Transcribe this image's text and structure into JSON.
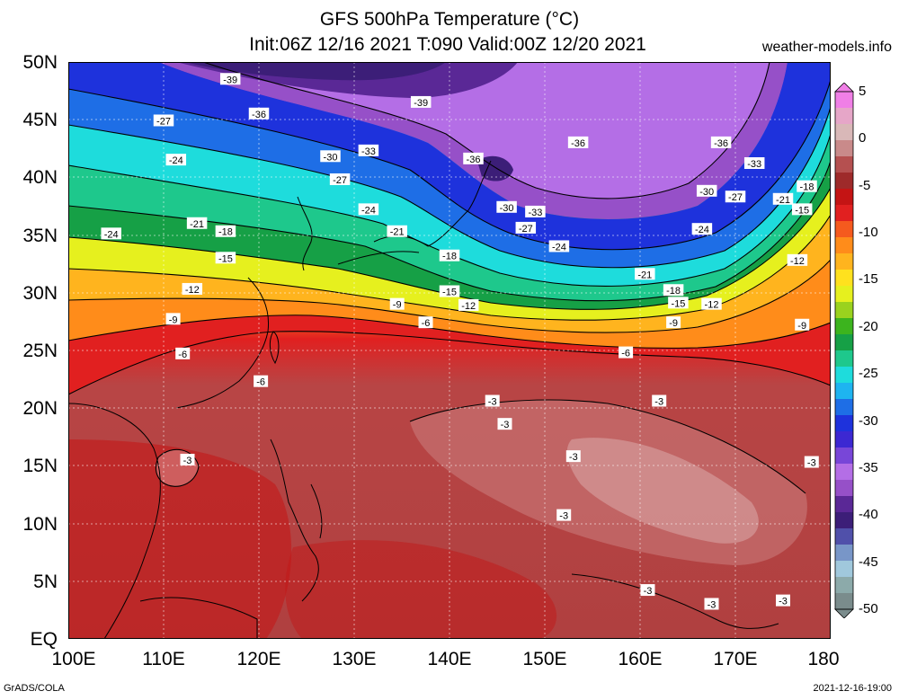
{
  "title": {
    "line1": "GFS 500hPa Temperature (°C)",
    "line2": "Init:06Z 12/16 2021 T:090 Valid:00Z 12/20 2021",
    "site": "weather-models.info"
  },
  "axes": {
    "lat_labels": [
      "50N",
      "45N",
      "40N",
      "35N",
      "30N",
      "25N",
      "20N",
      "15N",
      "10N",
      "5N",
      "EQ"
    ],
    "lat_values": [
      50,
      45,
      40,
      35,
      30,
      25,
      20,
      15,
      10,
      5,
      0
    ],
    "lon_labels": [
      "100E",
      "110E",
      "120E",
      "130E",
      "140E",
      "150E",
      "160E",
      "170E",
      "180"
    ],
    "lon_values": [
      100,
      110,
      120,
      130,
      140,
      150,
      160,
      170,
      180
    ],
    "lon_range": [
      100,
      180
    ],
    "lat_range": [
      0,
      50
    ]
  },
  "colorbar": {
    "labels": [
      "5",
      "0",
      "-5",
      "-10",
      "-15",
      "-20",
      "-25",
      "-30",
      "-35",
      "-40",
      "-45",
      "-50"
    ],
    "values": [
      5,
      0,
      -5,
      -10,
      -15,
      -20,
      -25,
      -30,
      -35,
      -40,
      -45,
      -50
    ],
    "colors": [
      "#f07fe6",
      "#e6a6c8",
      "#d9b8b8",
      "#c98a8a",
      "#b55050",
      "#9e2a2a",
      "#c41414",
      "#e12020",
      "#f55a1e",
      "#ff8c1a",
      "#ffb41e",
      "#ffe11e",
      "#e6f01e",
      "#9ad21e",
      "#3cb41e",
      "#16a046",
      "#1ec88c",
      "#1edcdc",
      "#1eb4f0",
      "#1e6ee6",
      "#1e32dc",
      "#3c28d2",
      "#7846d8",
      "#b46ee6",
      "#9650c8",
      "#5a2896",
      "#3c1e78",
      "#5050aa",
      "#7896c8",
      "#a0c8dc",
      "#8caaaa",
      "#7a8c8c"
    ]
  },
  "contour_labels": [
    {
      "text": "-39",
      "lon": 117.0,
      "lat": 48.5
    },
    {
      "text": "-39",
      "lon": 137.0,
      "lat": 46.5
    },
    {
      "text": "-36",
      "lon": 120.0,
      "lat": 45.5
    },
    {
      "text": "-27",
      "lon": 110.0,
      "lat": 44.9
    },
    {
      "text": "-30",
      "lon": 127.5,
      "lat": 41.8
    },
    {
      "text": "-33",
      "lon": 131.5,
      "lat": 42.3
    },
    {
      "text": "-36",
      "lon": 142.5,
      "lat": 41.6
    },
    {
      "text": "-36",
      "lon": 153.5,
      "lat": 43.0
    },
    {
      "text": "-36",
      "lon": 168.5,
      "lat": 43.0
    },
    {
      "text": "-33",
      "lon": 172.0,
      "lat": 41.2
    },
    {
      "text": "-24",
      "lon": 111.3,
      "lat": 41.5
    },
    {
      "text": "-27",
      "lon": 128.5,
      "lat": 39.8
    },
    {
      "text": "-30",
      "lon": 167.0,
      "lat": 38.8
    },
    {
      "text": "-27",
      "lon": 170.0,
      "lat": 38.3
    },
    {
      "text": "-21",
      "lon": 175.0,
      "lat": 38.1
    },
    {
      "text": "-18",
      "lon": 177.5,
      "lat": 39.2
    },
    {
      "text": "-15",
      "lon": 177.0,
      "lat": 37.2
    },
    {
      "text": "-24",
      "lon": 131.5,
      "lat": 37.2
    },
    {
      "text": "-30",
      "lon": 146.0,
      "lat": 37.4
    },
    {
      "text": "-33",
      "lon": 149.0,
      "lat": 37.0
    },
    {
      "text": "-27",
      "lon": 148.0,
      "lat": 35.6
    },
    {
      "text": "-24",
      "lon": 166.5,
      "lat": 35.5
    },
    {
      "text": "-24",
      "lon": 104.5,
      "lat": 35.1
    },
    {
      "text": "-21",
      "lon": 113.5,
      "lat": 36.0
    },
    {
      "text": "-18",
      "lon": 116.5,
      "lat": 35.3
    },
    {
      "text": "-21",
      "lon": 134.5,
      "lat": 35.3
    },
    {
      "text": "-24",
      "lon": 151.5,
      "lat": 34.0
    },
    {
      "text": "-15",
      "lon": 116.5,
      "lat": 33.0
    },
    {
      "text": "-18",
      "lon": 140.0,
      "lat": 33.2
    },
    {
      "text": "-12",
      "lon": 176.5,
      "lat": 32.8
    },
    {
      "text": "-21",
      "lon": 160.5,
      "lat": 31.6
    },
    {
      "text": "-12",
      "lon": 113.0,
      "lat": 30.3
    },
    {
      "text": "-15",
      "lon": 140.0,
      "lat": 30.1
    },
    {
      "text": "-18",
      "lon": 163.5,
      "lat": 30.2
    },
    {
      "text": "-9",
      "lon": 134.5,
      "lat": 29.0
    },
    {
      "text": "-12",
      "lon": 142.0,
      "lat": 28.9
    },
    {
      "text": "-15",
      "lon": 164.0,
      "lat": 29.1
    },
    {
      "text": "-12",
      "lon": 167.5,
      "lat": 29.0
    },
    {
      "text": "-9",
      "lon": 111.0,
      "lat": 27.7
    },
    {
      "text": "-6",
      "lon": 137.5,
      "lat": 27.4
    },
    {
      "text": "-9",
      "lon": 163.5,
      "lat": 27.4
    },
    {
      "text": "-9",
      "lon": 177.0,
      "lat": 27.2
    },
    {
      "text": "-6",
      "lon": 112.0,
      "lat": 24.7
    },
    {
      "text": "-6",
      "lon": 158.5,
      "lat": 24.8
    },
    {
      "text": "-6",
      "lon": 120.2,
      "lat": 22.3
    },
    {
      "text": "-3",
      "lon": 144.5,
      "lat": 20.6
    },
    {
      "text": "-3",
      "lon": 162.0,
      "lat": 20.6
    },
    {
      "text": "-3",
      "lon": 145.8,
      "lat": 18.6
    },
    {
      "text": "-3",
      "lon": 112.5,
      "lat": 15.5
    },
    {
      "text": "-3",
      "lon": 153.0,
      "lat": 15.8
    },
    {
      "text": "-3",
      "lon": 178.0,
      "lat": 15.3
    },
    {
      "text": "-3",
      "lon": 152.0,
      "lat": 10.7
    },
    {
      "text": "-3",
      "lon": 160.8,
      "lat": 4.2
    },
    {
      "text": "-3",
      "lon": 167.5,
      "lat": 3.0
    },
    {
      "text": "-3",
      "lon": 175.0,
      "lat": 3.3
    }
  ],
  "footer": {
    "left": "GrADS/COLA",
    "right": "2021-12-16-19:00"
  }
}
